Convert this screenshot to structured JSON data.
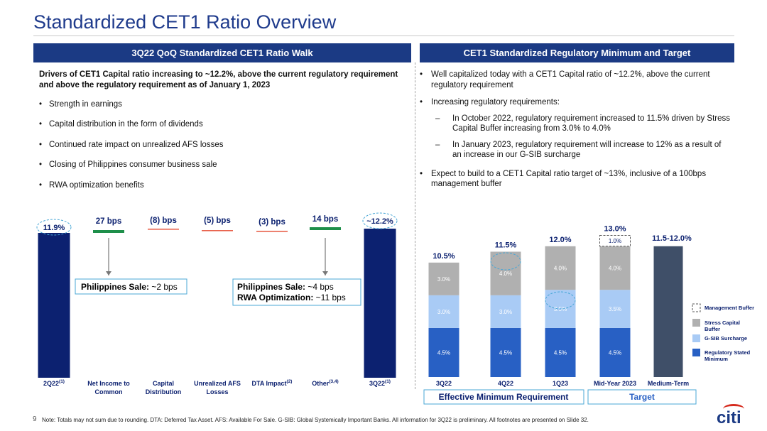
{
  "title": "Standardized CET1 Ratio Overview",
  "left_panel": {
    "header": "3Q22 QoQ Standardized CET1 Ratio Walk",
    "lead": "Drivers of CET1 Capital ratio increasing to ~12.2%, above the current regulatory requirement and above the regulatory requirement as of January 1, 2023",
    "bullets": [
      "Strength in earnings",
      "Capital distribution in the form of dividends",
      "Continued rate impact on unrealized AFS losses",
      "Closing of Philippines consumer business sale",
      "RWA optimization benefits"
    ]
  },
  "right_panel": {
    "header": "CET1 Standardized Regulatory Minimum and Target",
    "bullet1": "Well capitalized today with a CET1 Capital ratio of ~12.2%, above the current regulatory requirement",
    "bullet2": "Increasing regulatory requirements:",
    "sub1": "In October 2022, regulatory requirement increased to 11.5% driven by Stress Capital Buffer increasing from 3.0% to 4.0%",
    "sub2": "In January 2023, regulatory requirement will increase to 12% as a result of an increase in our G-SIB surcharge",
    "bullet3": "Expect to build to a CET1 Capital ratio target of ~13%, inclusive of a 100bps management buffer"
  },
  "colors": {
    "navy": "#0c2170",
    "header_blue": "#1b3a84",
    "green": "#1e8f4a",
    "red": "#e8604a",
    "regulatory_minimum": "#2860c4",
    "gsib_surcharge": "#a9cbf5",
    "stress_capital_buffer": "#b0b0b0",
    "medium_term": "#3f4f68",
    "callout_border": "#49a7d6",
    "citi_red": "#d62d20"
  },
  "chart_data": [
    {
      "type": "bar",
      "subtype": "waterfall",
      "title": "3Q22 QoQ Standardized CET1 Ratio Walk",
      "categories": [
        "2Q22",
        "Net Income to Common",
        "Capital Distribution",
        "Unrealized AFS Losses",
        "DTA Impact",
        "Other",
        "3Q22"
      ],
      "category_superscripts": [
        "(1)",
        "",
        "",
        "",
        "(2)",
        "(3,4)",
        "(1)"
      ],
      "category_lines": [
        [
          "2Q22"
        ],
        [
          "Net Income to",
          "Common"
        ],
        [
          "Capital",
          "Distribution"
        ],
        [
          "Unrealized AFS",
          "Losses"
        ],
        [
          "DTA Impact"
        ],
        [
          "Other"
        ],
        [
          "3Q22"
        ]
      ],
      "value_labels": [
        "11.9%",
        "27 bps",
        "(8) bps",
        "(5) bps",
        "(3) bps",
        "14 bps",
        "~12.2%"
      ],
      "values_bps": [
        null,
        27,
        -8,
        -5,
        -3,
        14,
        null
      ],
      "totals_pct": [
        11.9,
        null,
        null,
        null,
        null,
        null,
        12.2
      ],
      "callouts": [
        {
          "bold": "Philippines Sale:",
          "text": " ~2 bps"
        },
        {
          "lines": [
            {
              "bold": "Philippines Sale:",
              "text": " ~4 bps"
            },
            {
              "bold": "RWA Optimization:",
              "text": " ~11 bps"
            }
          ]
        }
      ]
    },
    {
      "type": "bar",
      "subtype": "stacked",
      "title": "CET1 Standardized Regulatory Minimum and Target",
      "categories": [
        "3Q22",
        "4Q22",
        "1Q23",
        "Mid-Year 2023",
        "Medium-Term"
      ],
      "series": [
        {
          "name": "Regulatory Stated Minimum",
          "values": [
            4.5,
            4.5,
            4.5,
            4.5,
            null
          ],
          "labels": [
            "4.5%",
            "4.5%",
            "4.5%",
            "4.5%",
            ""
          ]
        },
        {
          "name": "G-SIB Surcharge",
          "values": [
            3.0,
            3.0,
            3.5,
            3.5,
            null
          ],
          "labels": [
            "3.0%",
            "3.0%",
            "3.5%",
            "3.5%",
            ""
          ]
        },
        {
          "name": "Stress Capital Buffer",
          "values": [
            3.0,
            4.0,
            4.0,
            4.0,
            null
          ],
          "labels": [
            "3.0%",
            "4.0%",
            "4.0%",
            "4.0%",
            ""
          ]
        },
        {
          "name": "Management Buffer",
          "values": [
            null,
            null,
            null,
            1.0,
            null
          ],
          "labels": [
            "",
            "",
            "",
            "1.0%",
            ""
          ]
        }
      ],
      "totals": [
        10.5,
        11.5,
        12.0,
        13.0,
        null
      ],
      "total_labels": [
        "10.5%",
        "11.5%",
        "12.0%",
        "13.0%",
        "11.5-12.0%"
      ],
      "medium_term_range": [
        11.5,
        12.0
      ],
      "legend": [
        "Management Buffer",
        "Stress Capital Buffer",
        "G-SIB Surcharge",
        "Regulatory Stated Minimum"
      ],
      "legend_position": "right",
      "group_labels": [
        "Effective Minimum Requirement",
        "Target"
      ]
    }
  ],
  "footnote": "Note:  Totals may not sum due to rounding. DTA: Deferred Tax Asset. AFS: Available For Sale. G-SIB: Global Systemically Important Banks. All information for 3Q22 is preliminary.  All footnotes are presented on Slide 32.",
  "page_number": "9",
  "logo_text": "citi"
}
